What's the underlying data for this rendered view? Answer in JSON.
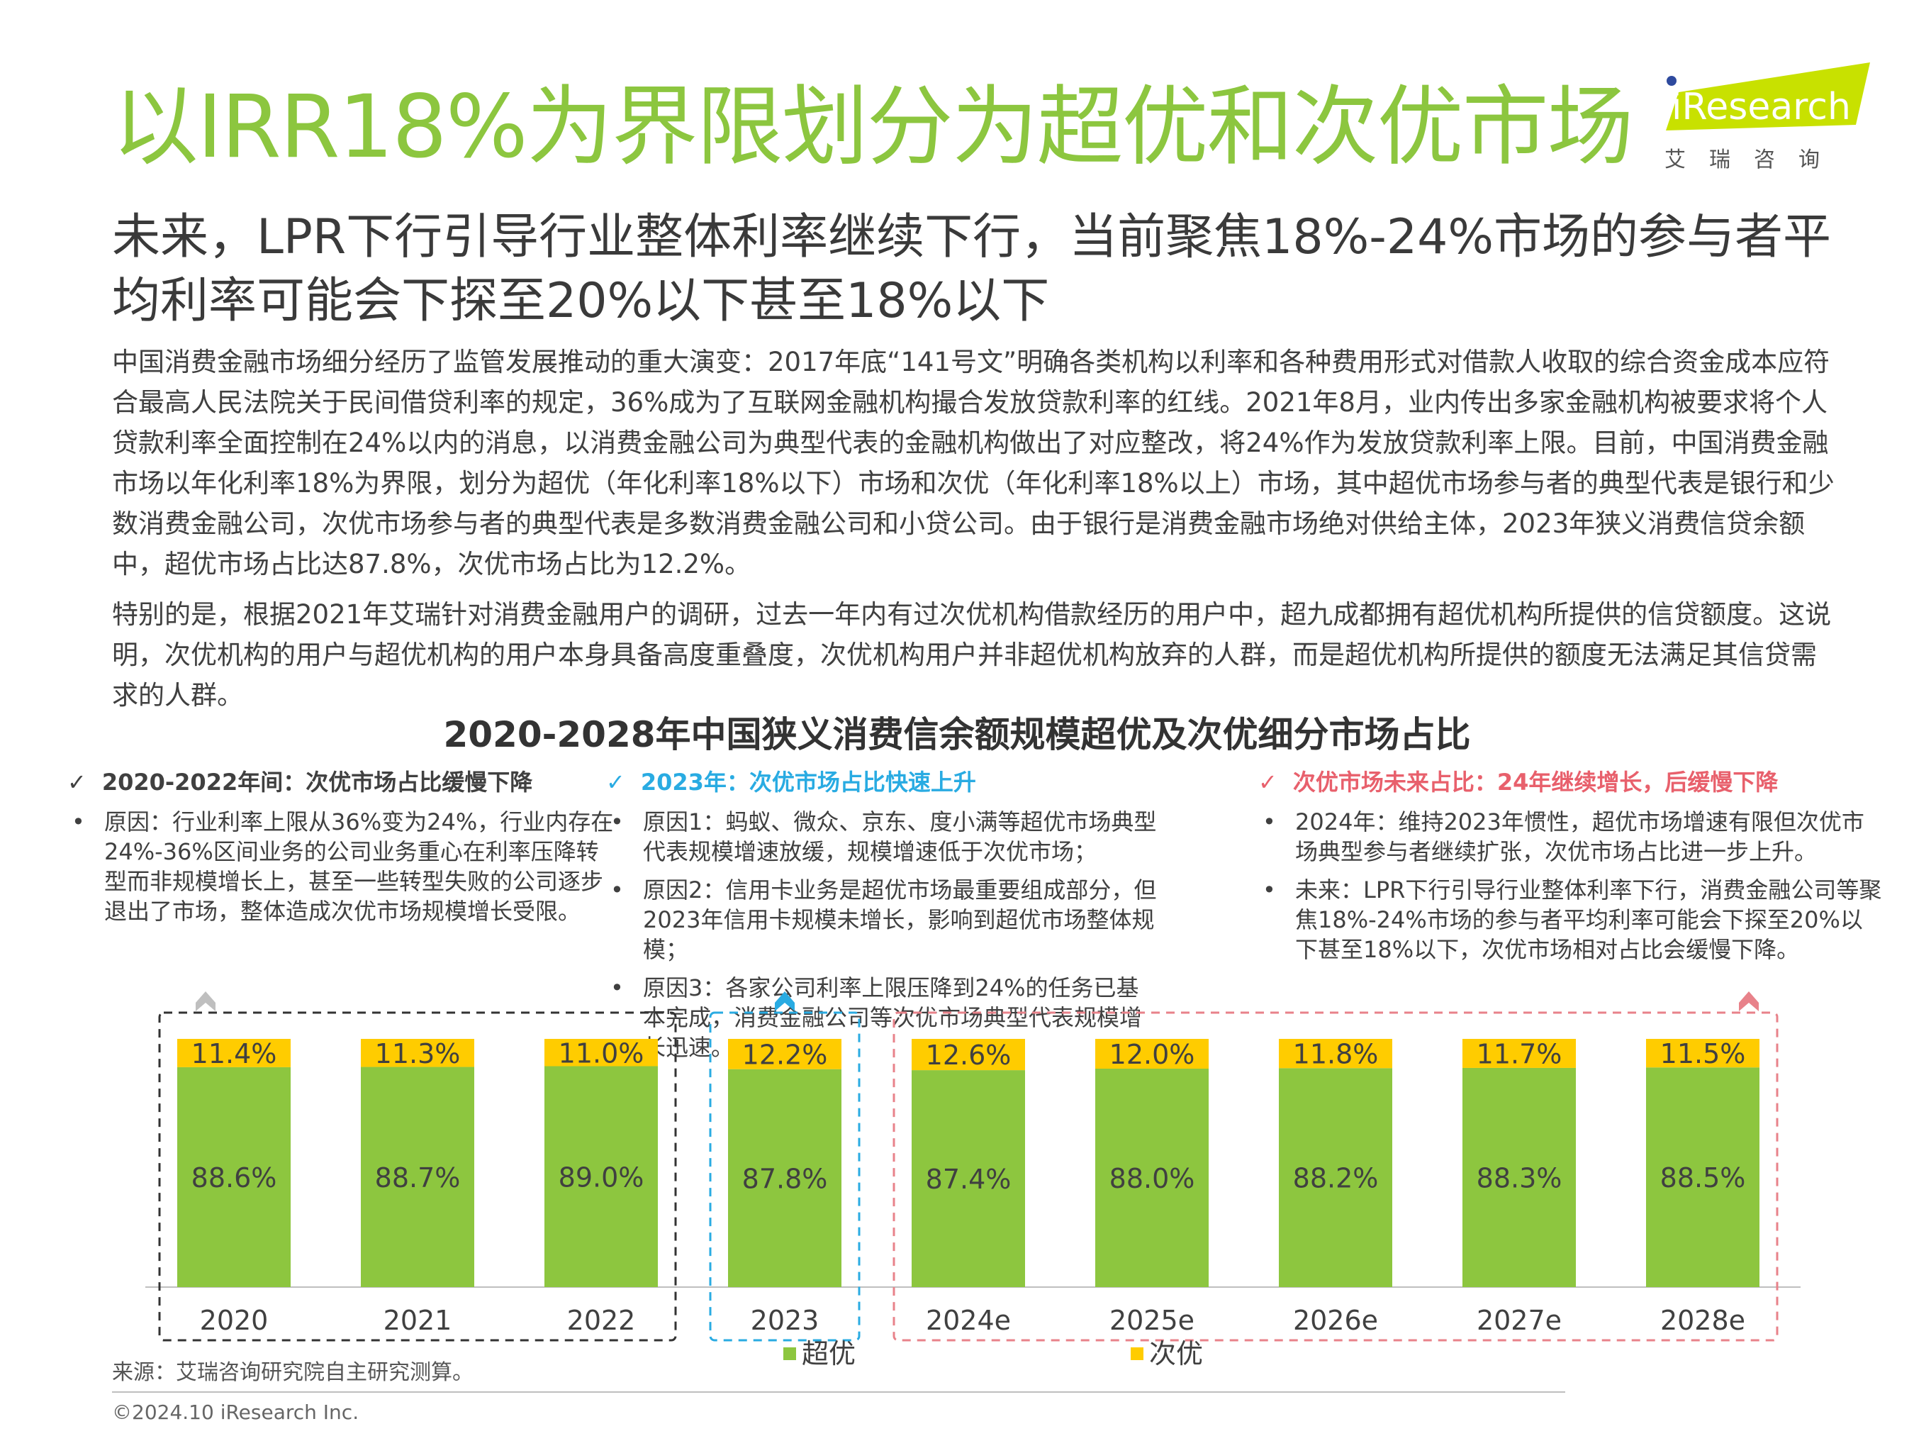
{
  "header": {
    "title": "以IRR18%为界限划分为超优和次优市场",
    "subtitle": "未来，LPR下行引导行业整体利率继续下行，当前聚焦18%-24%市场的参与者平均利率可能会下探至20%以下甚至18%以下"
  },
  "logo": {
    "text": "iResearch",
    "cn": "艾瑞咨询"
  },
  "body": {
    "para1": "中国消费金融市场细分经历了监管发展推动的重大演变：2017年底“141号文”明确各类机构以利率和各种费用形式对借款人收取的综合资金成本应符合最高人民法院关于民间借贷利率的规定，36%成为了互联网金融机构撮合发放贷款利率的红线。2021年8月，业内传出多家金融机构被要求将个人贷款利率全面控制在24%以内的消息，以消费金融公司为典型代表的金融机构做出了对应整改，将24%作为发放贷款利率上限。目前，中国消费金融市场以年化利率18%为界限，划分为超优（年化利率18%以下）市场和次优（年化利率18%以上）市场，其中超优市场参与者的典型代表是银行和少数消费金融公司，次优市场参与者的典型代表是多数消费金融公司和小贷公司。由于银行是消费金融市场绝对供给主体，2023年狭义消费信贷余额中，超优市场占比达87.8%，次优市场占比为12.2%。",
    "para2": "特别的是，根据2021年艾瑞针对消费金融用户的调研，过去一年内有过次优机构借款经历的用户中，超九成都拥有超优机构所提供的信贷额度。这说明，次优机构的用户与超优机构的用户本身具备高度重叠度，次优机构用户并非超优机构放弃的人群，而是超优机构所提供的额度无法满足其信贷需求的人群。"
  },
  "notes": [
    {
      "check": "✓",
      "heading": "2020-2022年间：次优市场占比缓慢下降",
      "color": "#404040",
      "items": [
        "原因：行业利率上限从36%变为24%，行业内存在24%-36%区间业务的公司业务重心在利率压降转型而非规模增长上，甚至一些转型失败的公司逐步退出了市场，整体造成次优市场规模增长受限。"
      ]
    },
    {
      "check": "✓",
      "heading": "2023年：次优市场占比快速上升",
      "color": "#29ABE2",
      "items": [
        "原因1：蚂蚁、微众、京东、度小满等超优市场典型代表规模增速放缓，规模增速低于次优市场；",
        "原因2：信用卡业务是超优市场最重要组成部分，但2023年信用卡规模未增长，影响到超优市场整体规模；",
        "原因3：各家公司利率上限压降到24%的任务已基本完成，消费金融公司等次优市场典型代表规模增长迅速。"
      ]
    },
    {
      "check": "✓",
      "heading": "次优市场未来占比：24年继续增长，后缓慢下降",
      "color": "#E8606C",
      "items": [
        "2024年：维持2023年惯性，超优市场增速有限但次优市场典型参与者继续扩张，次优市场占比进一步上升。",
        "未来：LPR下行引导行业整体利率下行，消费金融公司等聚焦18%-24%市场的参与者平均利率可能会下探至20%以下甚至18%以下，次优市场相对占比会缓慢下降。"
      ]
    }
  ],
  "chart_data": {
    "type": "bar",
    "stacked": true,
    "title": "2020-2028年中国狭义消费信余额规模超优及次优细分市场占比",
    "categories": [
      "2020",
      "2021",
      "2022",
      "2023",
      "2024e",
      "2025e",
      "2026e",
      "2027e",
      "2028e"
    ],
    "series": [
      {
        "name": "超优",
        "color": "#8DC63F",
        "values": [
          88.6,
          88.7,
          89.0,
          87.8,
          87.4,
          88.0,
          88.2,
          88.3,
          88.5
        ]
      },
      {
        "name": "次优",
        "color": "#FFCC00",
        "values": [
          11.4,
          11.3,
          11.0,
          12.2,
          12.6,
          12.0,
          11.8,
          11.7,
          11.5
        ]
      }
    ],
    "value_format": "%",
    "ylim": [
      0,
      100
    ],
    "legend": "bottom",
    "groups": [
      {
        "categories": [
          "2020",
          "2021",
          "2022"
        ],
        "color": "#333333",
        "arrow_color": "#BFBFBF"
      },
      {
        "categories": [
          "2023"
        ],
        "color": "#29ABE2",
        "arrow_color": "#29ABE2"
      },
      {
        "categories": [
          "2024e",
          "2025e",
          "2026e",
          "2027e",
          "2028e"
        ],
        "color": "#E8828A",
        "arrow_color": "#E8828A"
      }
    ]
  },
  "footer": {
    "source": "来源：艾瑞咨询研究院自主研究测算。",
    "copyright": "©2024.10 iResearch Inc."
  }
}
